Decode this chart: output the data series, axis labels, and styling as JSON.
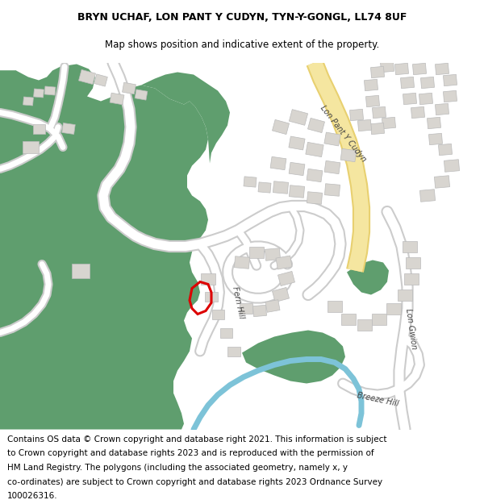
{
  "title": "BRYN UCHAF, LON PANT Y CUDYN, TYN-Y-GONGL, LL74 8UF",
  "subtitle": "Map shows position and indicative extent of the property.",
  "footer_line1": "Contains OS data © Crown copyright and database right 2021. This information is subject",
  "footer_line2": "to Crown copyright and database rights 2023 and is reproduced with the permission of",
  "footer_line3": "HM Land Registry. The polygons (including the associated geometry, namely x, y",
  "footer_line4": "co-ordinates) are subject to Crown copyright and database rights 2023 Ordnance Survey",
  "footer_line5": "100026316.",
  "map_bg": "#ffffff",
  "green_color": "#5f9e6e",
  "road_color": "#ffffff",
  "road_outline": "#cccccc",
  "yellow_road_fill": "#f5e6a0",
  "yellow_road_border": "#e8d070",
  "plot_edge": "#dd0000",
  "plot_fill": "none",
  "water_color": "#7dc3d8",
  "water_green": "#5f9e6e",
  "building_fill": "#d8d5d0",
  "building_edge": "#bbbbbb",
  "title_fontsize": 9,
  "subtitle_fontsize": 8.5,
  "footer_fontsize": 7.5
}
